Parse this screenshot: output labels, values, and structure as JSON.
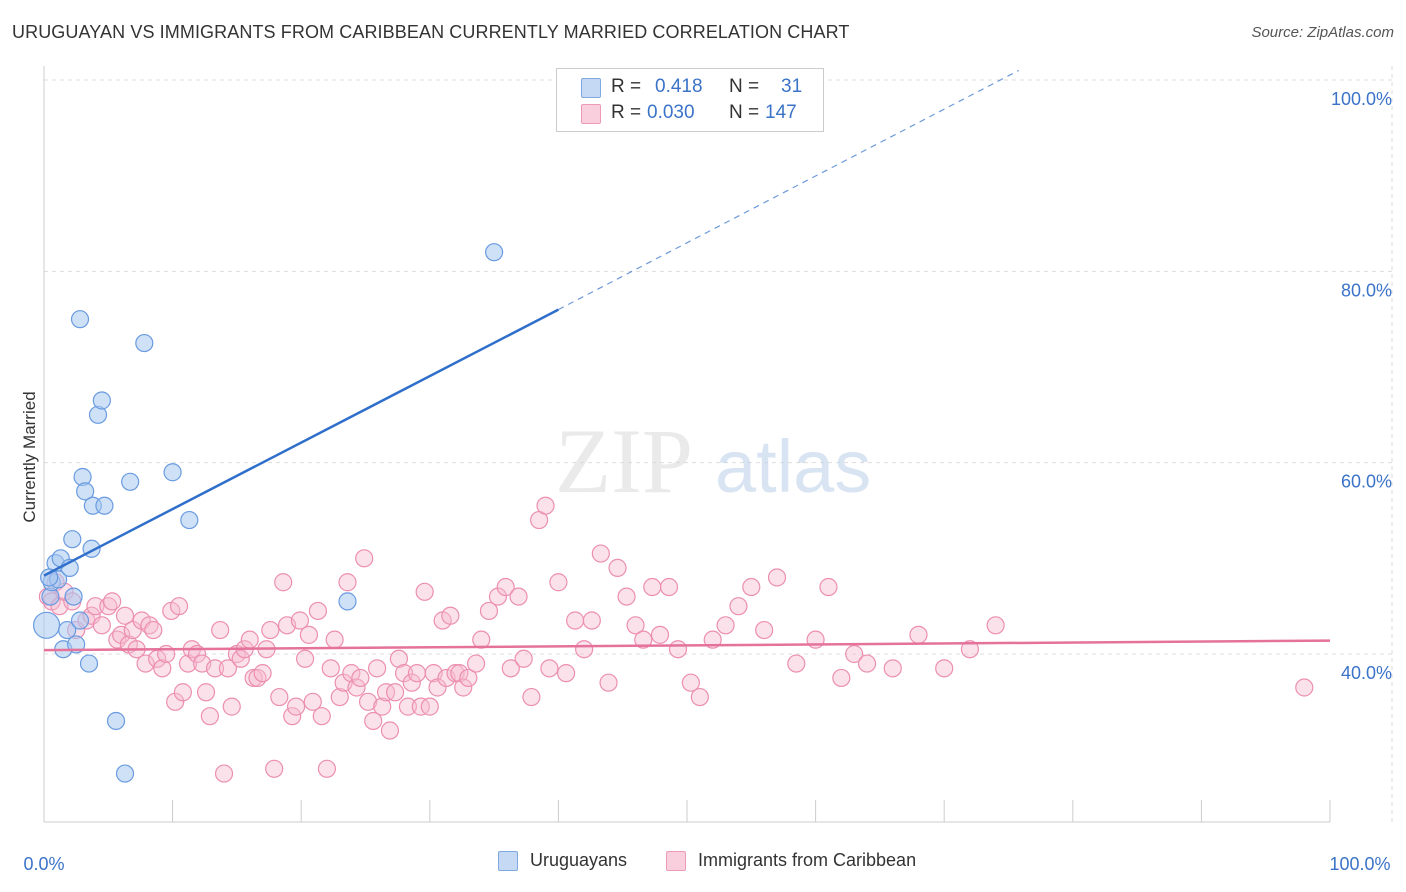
{
  "header": {
    "title": "URUGUAYAN VS IMMIGRANTS FROM CARIBBEAN CURRENTLY MARRIED CORRELATION CHART",
    "source": "Source: ZipAtlas.com"
  },
  "watermark": {
    "zip": "ZIP",
    "atlas": "atlas"
  },
  "legend_top": {
    "rows": [
      {
        "r_label": "R =",
        "r_value": "0.418",
        "n_label": "N =",
        "n_value": "31"
      },
      {
        "r_label": "R =",
        "r_value": "0.030",
        "n_label": "N =",
        "n_value": "147"
      }
    ]
  },
  "legend_bottom": {
    "series1": "Uruguayans",
    "series2": "Immigrants from Caribbean"
  },
  "colors": {
    "blue_fill": "#a8c8f0",
    "blue_stroke": "#6a9be0",
    "blue_line": "#2f6fcb",
    "pink_fill": "#f6bcd0",
    "pink_stroke": "#ec8fb0",
    "pink_line": "#e4729a",
    "tick_label": "#3b73c8",
    "grid": "#dddddd"
  },
  "chart_data": {
    "type": "scatter",
    "title": "URUGUAYAN VS IMMIGRANTS FROM CARIBBEAN CURRENTLY MARRIED CORRELATION CHART",
    "xlabel": "",
    "ylabel": "Currently Married",
    "xlim": [
      0,
      100
    ],
    "ylim": [
      20,
      102
    ],
    "x_tick_labels": [
      "0.0%",
      "100.0%"
    ],
    "y_ticks": [
      40,
      60,
      80,
      100
    ],
    "y_tick_labels": [
      "40.0%",
      "60.0%",
      "80.0%",
      "100.0%"
    ],
    "grid": true,
    "legend_position": "top-center",
    "series": [
      {
        "name": "Uruguayans",
        "points": [
          [
            0.2,
            43.0
          ],
          [
            0.5,
            46.0
          ],
          [
            0.6,
            47.5
          ],
          [
            0.9,
            49.5
          ],
          [
            1.1,
            47.8
          ],
          [
            1.3,
            50.0
          ],
          [
            1.5,
            40.5
          ],
          [
            1.8,
            42.5
          ],
          [
            2.0,
            49.0
          ],
          [
            2.2,
            52.0
          ],
          [
            2.3,
            46.0
          ],
          [
            2.5,
            41.0
          ],
          [
            2.8,
            43.5
          ],
          [
            3.0,
            58.5
          ],
          [
            3.2,
            57.0
          ],
          [
            3.5,
            39.0
          ],
          [
            3.7,
            51.0
          ],
          [
            3.8,
            55.5
          ],
          [
            4.2,
            65.0
          ],
          [
            4.5,
            66.5
          ],
          [
            2.8,
            75.0
          ],
          [
            4.7,
            55.5
          ],
          [
            5.6,
            33.0
          ],
          [
            6.3,
            27.5
          ],
          [
            6.7,
            58.0
          ],
          [
            7.8,
            72.5
          ],
          [
            10.0,
            59.0
          ],
          [
            11.3,
            54.0
          ],
          [
            23.6,
            45.5
          ],
          [
            35.0,
            82.0
          ],
          [
            0.4,
            48.0
          ]
        ],
        "trend": {
          "x": [
            0,
            40
          ],
          "y": [
            48.2,
            76.0
          ]
        },
        "trend_dashed": {
          "x": [
            40,
            75.8
          ],
          "y": [
            76.0,
            101.0
          ]
        }
      },
      {
        "name": "Immigrants from Caribbean",
        "points": [
          [
            0.3,
            46.0
          ],
          [
            0.6,
            45.5
          ],
          [
            0.9,
            47.5
          ],
          [
            1.2,
            45.0
          ],
          [
            1.6,
            46.5
          ],
          [
            2.2,
            45.5
          ],
          [
            2.5,
            42.5
          ],
          [
            3.3,
            43.5
          ],
          [
            3.7,
            44.0
          ],
          [
            4.0,
            45.0
          ],
          [
            4.5,
            43.0
          ],
          [
            5.0,
            45.0
          ],
          [
            5.3,
            45.5
          ],
          [
            5.7,
            41.5
          ],
          [
            6.0,
            42.0
          ],
          [
            6.3,
            44.0
          ],
          [
            6.6,
            41.0
          ],
          [
            6.9,
            42.5
          ],
          [
            7.2,
            40.5
          ],
          [
            7.6,
            43.5
          ],
          [
            7.9,
            39.0
          ],
          [
            8.2,
            43.0
          ],
          [
            8.5,
            42.5
          ],
          [
            8.8,
            39.5
          ],
          [
            9.2,
            38.5
          ],
          [
            9.5,
            40.0
          ],
          [
            9.9,
            44.5
          ],
          [
            10.2,
            35.0
          ],
          [
            10.5,
            45.0
          ],
          [
            10.8,
            36.0
          ],
          [
            11.2,
            39.0
          ],
          [
            11.5,
            40.5
          ],
          [
            11.9,
            40.0
          ],
          [
            12.3,
            39.0
          ],
          [
            12.6,
            36.0
          ],
          [
            12.9,
            33.5
          ],
          [
            13.3,
            38.5
          ],
          [
            13.7,
            42.5
          ],
          [
            14.0,
            27.5
          ],
          [
            14.3,
            38.5
          ],
          [
            14.6,
            34.5
          ],
          [
            15.0,
            40.0
          ],
          [
            15.3,
            39.5
          ],
          [
            15.6,
            40.5
          ],
          [
            16.0,
            41.5
          ],
          [
            16.3,
            37.5
          ],
          [
            16.6,
            37.5
          ],
          [
            17.0,
            38.0
          ],
          [
            17.3,
            40.5
          ],
          [
            17.6,
            42.5
          ],
          [
            17.9,
            28.0
          ],
          [
            18.3,
            35.5
          ],
          [
            18.6,
            47.5
          ],
          [
            18.9,
            43.0
          ],
          [
            19.3,
            33.5
          ],
          [
            19.6,
            34.5
          ],
          [
            19.9,
            43.5
          ],
          [
            20.3,
            39.5
          ],
          [
            20.6,
            42.0
          ],
          [
            20.9,
            35.0
          ],
          [
            21.3,
            44.5
          ],
          [
            21.6,
            33.5
          ],
          [
            22.0,
            28.0
          ],
          [
            22.3,
            38.5
          ],
          [
            22.6,
            41.5
          ],
          [
            23.0,
            35.5
          ],
          [
            23.3,
            37.0
          ],
          [
            23.6,
            47.5
          ],
          [
            23.9,
            38.0
          ],
          [
            24.3,
            36.5
          ],
          [
            24.6,
            37.5
          ],
          [
            24.9,
            50.0
          ],
          [
            25.2,
            35.0
          ],
          [
            25.6,
            33.0
          ],
          [
            25.9,
            38.5
          ],
          [
            26.3,
            34.5
          ],
          [
            26.6,
            36.0
          ],
          [
            26.9,
            32.0
          ],
          [
            27.3,
            36.0
          ],
          [
            27.6,
            39.5
          ],
          [
            28.0,
            38.0
          ],
          [
            28.3,
            34.5
          ],
          [
            28.6,
            37.0
          ],
          [
            29.0,
            38.0
          ],
          [
            29.3,
            34.5
          ],
          [
            29.6,
            46.5
          ],
          [
            30.0,
            34.5
          ],
          [
            30.3,
            38.0
          ],
          [
            30.6,
            36.5
          ],
          [
            31.0,
            43.5
          ],
          [
            31.3,
            37.5
          ],
          [
            31.6,
            44.0
          ],
          [
            32.0,
            38.0
          ],
          [
            32.3,
            38.0
          ],
          [
            32.6,
            36.5
          ],
          [
            33.0,
            37.5
          ],
          [
            33.6,
            39.0
          ],
          [
            34.0,
            41.5
          ],
          [
            34.6,
            44.5
          ],
          [
            35.3,
            46.0
          ],
          [
            35.9,
            47.0
          ],
          [
            36.3,
            38.5
          ],
          [
            36.9,
            46.0
          ],
          [
            37.3,
            39.5
          ],
          [
            37.9,
            35.5
          ],
          [
            38.5,
            54.0
          ],
          [
            39.0,
            55.5
          ],
          [
            39.3,
            38.5
          ],
          [
            40.0,
            47.5
          ],
          [
            40.6,
            38.0
          ],
          [
            41.3,
            43.5
          ],
          [
            42.0,
            40.5
          ],
          [
            42.6,
            43.5
          ],
          [
            43.3,
            50.5
          ],
          [
            43.9,
            37.0
          ],
          [
            44.6,
            49.0
          ],
          [
            45.3,
            46.0
          ],
          [
            46.0,
            43.0
          ],
          [
            46.6,
            41.5
          ],
          [
            47.3,
            47.0
          ],
          [
            47.9,
            42.0
          ],
          [
            48.6,
            47.0
          ],
          [
            49.3,
            40.5
          ],
          [
            50.3,
            37.0
          ],
          [
            51.0,
            35.5
          ],
          [
            52.0,
            41.5
          ],
          [
            53.0,
            43.0
          ],
          [
            54.0,
            45.0
          ],
          [
            55.0,
            47.0
          ],
          [
            56.0,
            42.5
          ],
          [
            57.0,
            48.0
          ],
          [
            58.5,
            39.0
          ],
          [
            60.0,
            41.5
          ],
          [
            61.0,
            47.0
          ],
          [
            62.0,
            37.5
          ],
          [
            63.0,
            40.0
          ],
          [
            64.0,
            39.0
          ],
          [
            66.0,
            38.5
          ],
          [
            68.0,
            42.0
          ],
          [
            70.0,
            38.5
          ],
          [
            72.0,
            40.5
          ],
          [
            74.0,
            43.0
          ],
          [
            98.0,
            36.5
          ]
        ],
        "trend": {
          "x": [
            0,
            100
          ],
          "y": [
            40.4,
            41.4
          ]
        }
      }
    ]
  }
}
